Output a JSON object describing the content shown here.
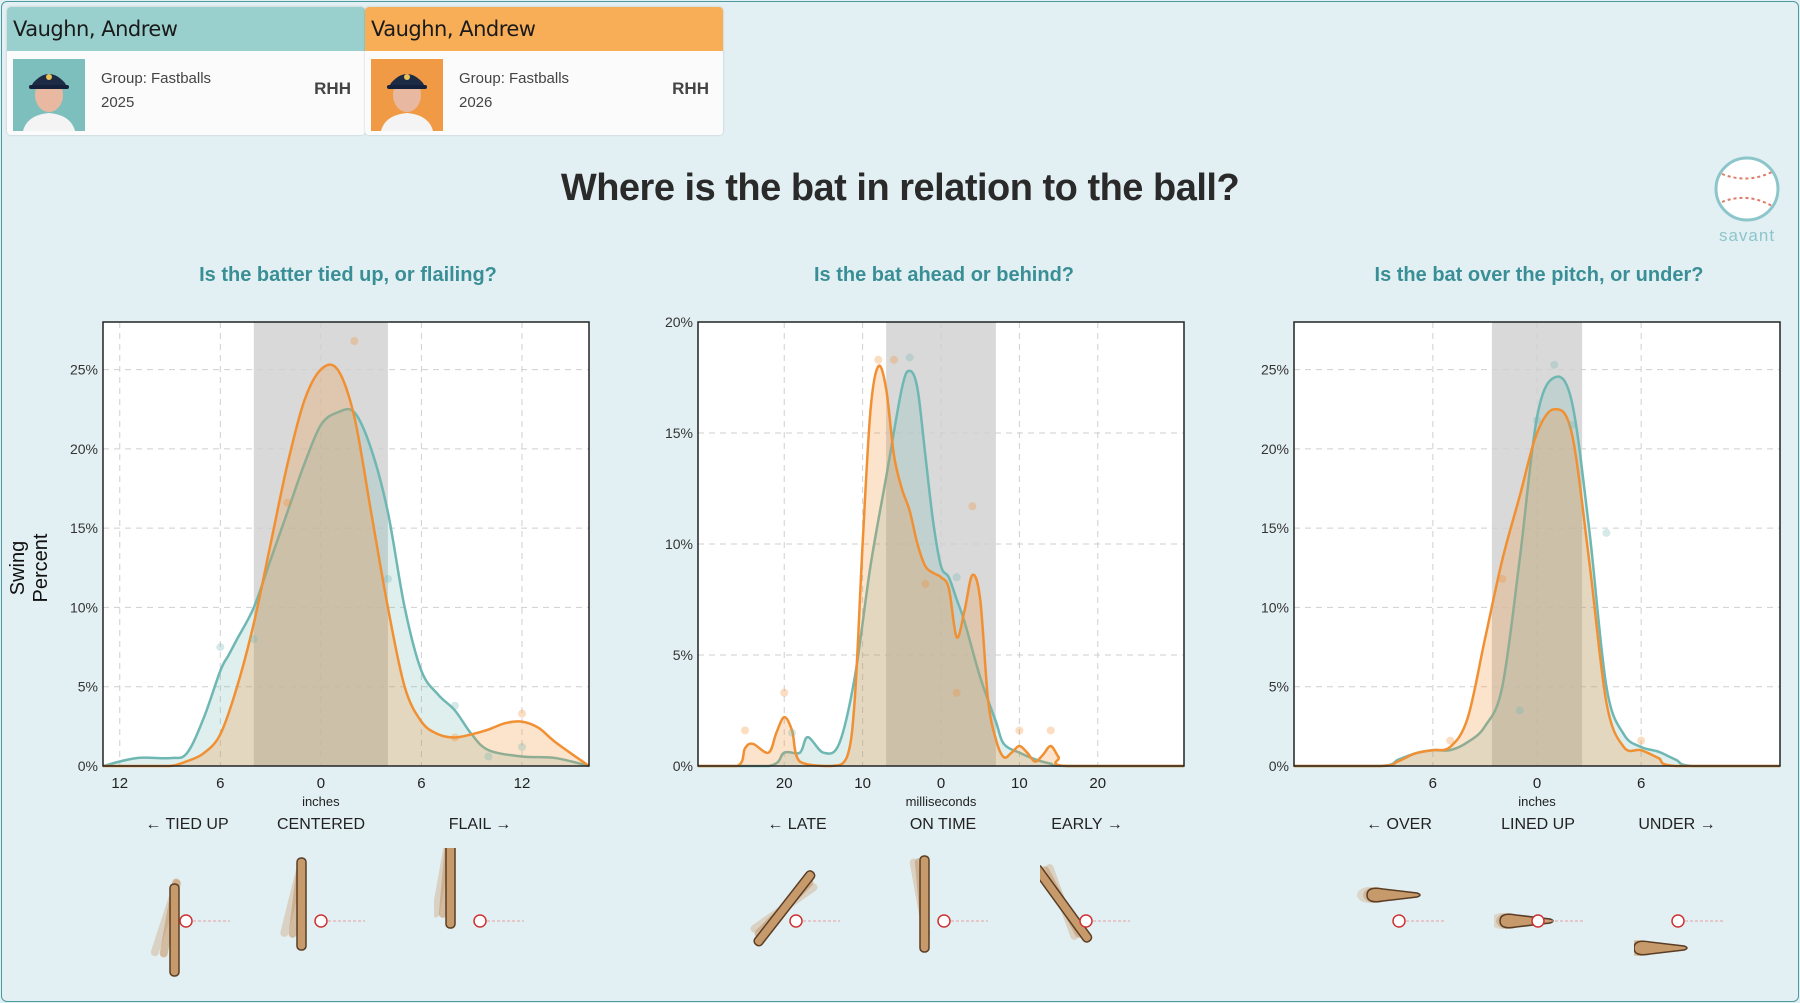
{
  "players": [
    {
      "name": "Vaughn, Andrew",
      "group": "Group: Fastballs",
      "year": "2025",
      "hand": "RHH",
      "color": "#99d0cd"
    },
    {
      "name": "Vaughn, Andrew",
      "group": "Group: Fastballs",
      "year": "2026",
      "hand": "RHH",
      "color": "#f8ad57"
    }
  ],
  "title": "Where is the bat in relation to the ball?",
  "logo_text": "savant",
  "ylabel": "Swing Percent",
  "colors": {
    "teal": "#6fb7b3",
    "orange": "#f19033",
    "grey_band": "#d9d9d9"
  },
  "chart_data": [
    {
      "type": "area",
      "title": "Is the batter tied up, or flailing?",
      "xlabel": "inches",
      "xticks": [
        "12",
        "6",
        "0",
        "6",
        "12"
      ],
      "xtick_values": [
        -12,
        -6,
        0,
        6,
        12
      ],
      "xlim": [
        -13,
        16
      ],
      "ylim": [
        0,
        28
      ],
      "yticks": [
        "0%",
        "5%",
        "10%",
        "15%",
        "20%",
        "25%"
      ],
      "ytick_values": [
        0,
        5,
        10,
        15,
        20,
        25
      ],
      "band": [
        -4,
        4
      ],
      "zones": [
        "← TIED UP",
        "CENTERED",
        "FLAIL →"
      ],
      "zone_values": [
        -8,
        0,
        10
      ],
      "series": [
        {
          "color": "teal",
          "x": [
            -13,
            -11,
            -9,
            -8,
            -7,
            -6,
            -5.5,
            -5,
            -4,
            -3,
            -2,
            -1,
            0,
            1,
            2,
            3,
            4,
            5,
            6,
            7,
            8,
            9,
            10,
            12,
            14,
            16
          ],
          "y": [
            0,
            0.5,
            0.5,
            0.8,
            3,
            6,
            7,
            8,
            10,
            13,
            16,
            19,
            21.5,
            22.3,
            22.3,
            20,
            16,
            10,
            6,
            4.5,
            3.5,
            2,
            1,
            0.6,
            0.5,
            0
          ]
        },
        {
          "color": "orange",
          "x": [
            -13,
            -11,
            -9,
            -8,
            -7,
            -6,
            -5,
            -4,
            -3,
            -2,
            -1,
            0,
            1,
            2,
            3,
            4,
            5,
            6,
            7,
            8,
            9,
            10,
            11,
            12,
            13,
            14,
            16
          ],
          "y": [
            0,
            0,
            0,
            0.3,
            0.8,
            2,
            5,
            9,
            14,
            19,
            23,
            25,
            25,
            22,
            16,
            10,
            5,
            2.8,
            2,
            1.8,
            2,
            2.3,
            2.7,
            2.8,
            2.4,
            1.5,
            0
          ]
        }
      ],
      "points": [
        {
          "x": -6,
          "y": 7.5,
          "color": "teal"
        },
        {
          "x": -4,
          "y": 8,
          "color": "teal"
        },
        {
          "x": 2,
          "y": 26.8,
          "color": "orange"
        },
        {
          "x": 4,
          "y": 11.8,
          "color": "teal"
        },
        {
          "x": 8,
          "y": 3.8,
          "color": "teal"
        },
        {
          "x": 8,
          "y": 1.8,
          "color": "orange"
        },
        {
          "x": 10,
          "y": 0.6,
          "color": "teal"
        },
        {
          "x": 12,
          "y": 3.3,
          "color": "orange"
        },
        {
          "x": 12,
          "y": 1.2,
          "color": "teal"
        },
        {
          "x": -2,
          "y": 16.6,
          "color": "orange"
        }
      ]
    },
    {
      "type": "area",
      "title": "Is the bat ahead or behind?",
      "xlabel": "milliseconds",
      "xticks": [
        "20",
        "10",
        "0",
        "10",
        "20"
      ],
      "xtick_values": [
        -20,
        -10,
        0,
        10,
        20
      ],
      "xlim": [
        -31,
        31
      ],
      "ylim": [
        0,
        20
      ],
      "yticks": [
        "0%",
        "5%",
        "10%",
        "15%",
        "20%"
      ],
      "ytick_values": [
        0,
        5,
        10,
        15,
        20
      ],
      "band": [
        -7,
        7
      ],
      "zones": [
        "← LATE",
        "ON TIME",
        "EARLY →"
      ],
      "zone_values": [
        -19,
        0,
        19
      ],
      "series": [
        {
          "color": "teal",
          "x": [
            -31,
            -22,
            -20,
            -18,
            -17,
            -15,
            -13,
            -11,
            -9,
            -7,
            -5,
            -4,
            -3,
            -2,
            -1,
            0,
            1,
            2,
            3,
            5,
            7,
            8,
            10,
            12,
            14,
            16,
            31
          ],
          "y": [
            0,
            0,
            0.6,
            0.6,
            1.3,
            0.6,
            1,
            4,
            9,
            13,
            17,
            17.8,
            17,
            14,
            11,
            9,
            8.5,
            7.5,
            6.5,
            4,
            2,
            1,
            0.6,
            0.3,
            0.1,
            0,
            0
          ]
        },
        {
          "color": "orange",
          "x": [
            -31,
            -26,
            -25,
            -24,
            -22,
            -21,
            -20,
            -19,
            -18,
            -14,
            -12,
            -11,
            -10,
            -9,
            -8,
            -7,
            -6,
            -5,
            -4,
            -3,
            -2,
            -1,
            0,
            1,
            2,
            3,
            4,
            5,
            6,
            7,
            8,
            9,
            10,
            11,
            12,
            13,
            14,
            15,
            16,
            31
          ],
          "y": [
            0,
            0,
            0.8,
            1,
            0.6,
            1.5,
            2.2,
            1.6,
            0.2,
            0,
            0.4,
            3,
            10,
            16,
            18,
            17,
            14,
            12.5,
            11.5,
            10,
            9,
            8.7,
            8.5,
            8,
            5.8,
            7,
            8.6,
            7.5,
            3,
            1.2,
            0.4,
            0.6,
            0.9,
            0.6,
            0.2,
            0.5,
            0.9,
            0.4,
            0,
            0
          ]
        }
      ],
      "points": [
        {
          "x": -25,
          "y": 1.6,
          "color": "orange"
        },
        {
          "x": -20,
          "y": 3.3,
          "color": "orange"
        },
        {
          "x": -19,
          "y": 1.5,
          "color": "teal"
        },
        {
          "x": -8,
          "y": 18.3,
          "color": "orange"
        },
        {
          "x": -6,
          "y": 18.3,
          "color": "orange"
        },
        {
          "x": -4,
          "y": 18.4,
          "color": "teal"
        },
        {
          "x": -2,
          "y": 8.2,
          "color": "orange"
        },
        {
          "x": 2,
          "y": 8.5,
          "color": "teal"
        },
        {
          "x": 2,
          "y": 3.3,
          "color": "orange"
        },
        {
          "x": 4,
          "y": 11.7,
          "color": "orange"
        },
        {
          "x": 10,
          "y": 1.6,
          "color": "orange"
        },
        {
          "x": 14,
          "y": 1.6,
          "color": "orange"
        }
      ]
    },
    {
      "type": "area",
      "title": "Is the bat over the pitch, or under?",
      "xlabel": "inches",
      "xticks": [
        "6",
        "0",
        "6"
      ],
      "xtick_values": [
        -6,
        0,
        6
      ],
      "xlim": [
        -14,
        14
      ],
      "ylim": [
        0,
        28
      ],
      "yticks": [
        "0%",
        "5%",
        "10%",
        "15%",
        "20%",
        "25%"
      ],
      "ytick_values": [
        0,
        5,
        10,
        15,
        20,
        25
      ],
      "band": [
        -2.6,
        2.6
      ],
      "zones": [
        "← OVER",
        "LINED UP",
        "UNDER →"
      ],
      "zone_values": [
        -8,
        0,
        8
      ],
      "series": [
        {
          "color": "teal",
          "x": [
            -14,
            -9,
            -8,
            -7,
            -6,
            -5,
            -4,
            -3,
            -2,
            -1,
            0,
            1,
            2,
            3,
            4,
            5,
            6,
            7,
            8,
            9,
            14
          ],
          "y": [
            0,
            0,
            0.4,
            0.8,
            1,
            1,
            1.5,
            2.5,
            5,
            13,
            22,
            24.5,
            23,
            15,
            5,
            2,
            1.2,
            0.9,
            0.4,
            0,
            0
          ]
        },
        {
          "color": "orange",
          "x": [
            -14,
            -9,
            -8,
            -7,
            -6,
            -5,
            -4,
            -3,
            -2,
            -1,
            0,
            1,
            2,
            3,
            4,
            5,
            6,
            7,
            8,
            14
          ],
          "y": [
            0,
            0,
            0.3,
            0.8,
            1,
            1.2,
            3,
            8,
            13,
            17,
            21,
            22.5,
            21,
            13,
            4,
            1.2,
            1,
            0.5,
            0,
            0
          ]
        }
      ],
      "points": [
        {
          "x": -5,
          "y": 1.6,
          "color": "orange"
        },
        {
          "x": -2,
          "y": 11.8,
          "color": "orange"
        },
        {
          "x": -1,
          "y": 3.5,
          "color": "teal"
        },
        {
          "x": 0,
          "y": 21.8,
          "color": "teal"
        },
        {
          "x": 1,
          "y": 25.3,
          "color": "teal"
        },
        {
          "x": 2,
          "y": 21.5,
          "color": "teal"
        },
        {
          "x": 4,
          "y": 14.7,
          "color": "teal"
        },
        {
          "x": 6,
          "y": 1.6,
          "color": "orange"
        }
      ]
    }
  ]
}
